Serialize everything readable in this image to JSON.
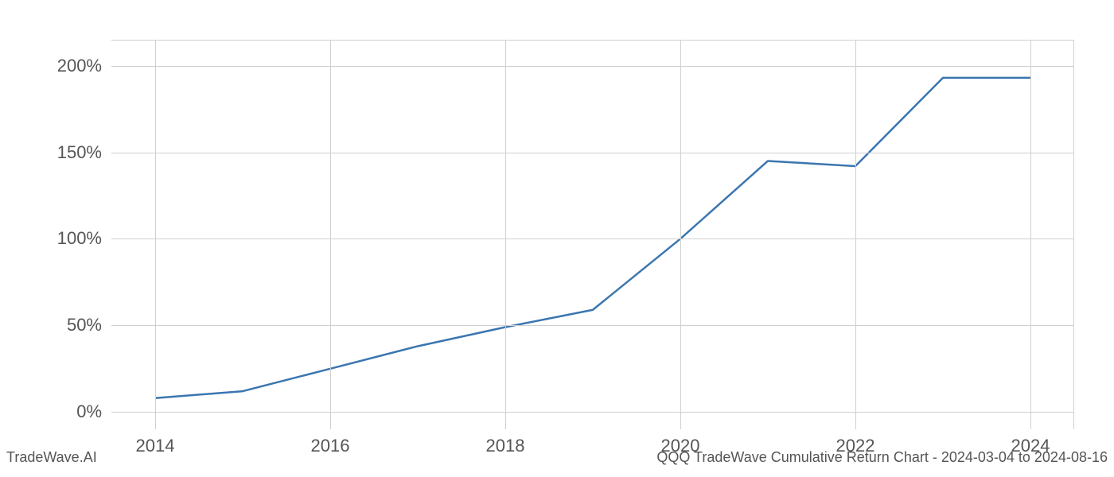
{
  "chart": {
    "type": "line",
    "x_values": [
      2014,
      2015,
      2016,
      2017,
      2018,
      2019,
      2020,
      2021,
      2022,
      2023,
      2024
    ],
    "y_values": [
      8,
      12,
      25,
      38,
      49,
      59,
      100,
      145,
      142,
      193,
      193
    ],
    "line_color": "#3b76af",
    "line_width": 2.5,
    "background_color": "#ffffff",
    "grid_color": "#d0d0d0",
    "x_axis": {
      "min": 2013.5,
      "max": 2024.5,
      "ticks": [
        2014,
        2016,
        2018,
        2020,
        2022,
        2024
      ],
      "tick_labels": [
        "2014",
        "2016",
        "2018",
        "2020",
        "2022",
        "2024"
      ],
      "label_fontsize": 22,
      "label_color": "#555555"
    },
    "y_axis": {
      "min": -10,
      "max": 215,
      "ticks": [
        0,
        50,
        100,
        150,
        200
      ],
      "tick_labels": [
        "0%",
        "50%",
        "100%",
        "150%",
        "200%"
      ],
      "label_fontsize": 22,
      "label_color": "#555555"
    }
  },
  "footer": {
    "left": "TradeWave.AI",
    "right": "QQQ TradeWave Cumulative Return Chart - 2024-03-04 to 2024-08-16",
    "fontsize": 18,
    "color": "#555555"
  }
}
